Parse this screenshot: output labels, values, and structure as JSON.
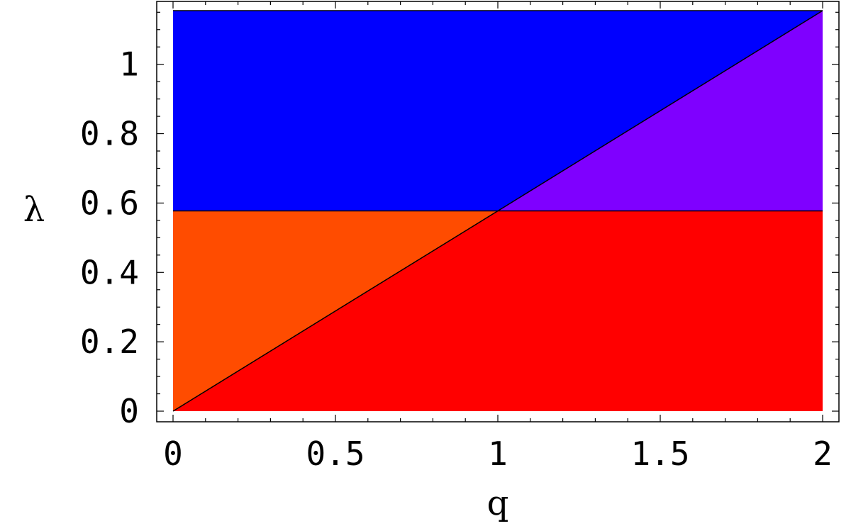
{
  "chart_data": {
    "type": "area",
    "xlabel": "q",
    "ylabel": "λ",
    "xlim": [
      0,
      2
    ],
    "ylim": [
      0,
      1.1547
    ],
    "x_ticks": [
      {
        "value": 0,
        "label": "0"
      },
      {
        "value": 0.5,
        "label": "0.5"
      },
      {
        "value": 1,
        "label": "1"
      },
      {
        "value": 1.5,
        "label": "1.5"
      },
      {
        "value": 2,
        "label": "2"
      }
    ],
    "y_ticks": [
      {
        "value": 0,
        "label": "0"
      },
      {
        "value": 0.2,
        "label": "0.2"
      },
      {
        "value": 0.4,
        "label": "0.4"
      },
      {
        "value": 0.6,
        "label": "0.6"
      },
      {
        "value": 0.8,
        "label": "0.8"
      },
      {
        "value": 1,
        "label": "1"
      }
    ],
    "boundaries": [
      {
        "kind": "horizontal",
        "y": 0.57735
      },
      {
        "kind": "line",
        "from": [
          0,
          0
        ],
        "to": [
          2,
          1.1547
        ]
      }
    ],
    "regions": [
      {
        "color": "#0000ff",
        "polygon": [
          [
            0,
            0.57735
          ],
          [
            1,
            0.57735
          ],
          [
            2,
            1.1547
          ],
          [
            0,
            1.1547
          ]
        ]
      },
      {
        "color": "#7f00ff",
        "polygon": [
          [
            1,
            0.57735
          ],
          [
            2,
            0.57735
          ],
          [
            2,
            1.1547
          ]
        ]
      },
      {
        "color": "#ff4c00",
        "polygon": [
          [
            0,
            0
          ],
          [
            1,
            0.57735
          ],
          [
            0,
            0.57735
          ]
        ]
      },
      {
        "color": "#ff0000",
        "polygon": [
          [
            0,
            0
          ],
          [
            2,
            0
          ],
          [
            2,
            0.57735
          ],
          [
            1,
            0.57735
          ]
        ]
      }
    ],
    "grid": false,
    "legend": "none"
  }
}
